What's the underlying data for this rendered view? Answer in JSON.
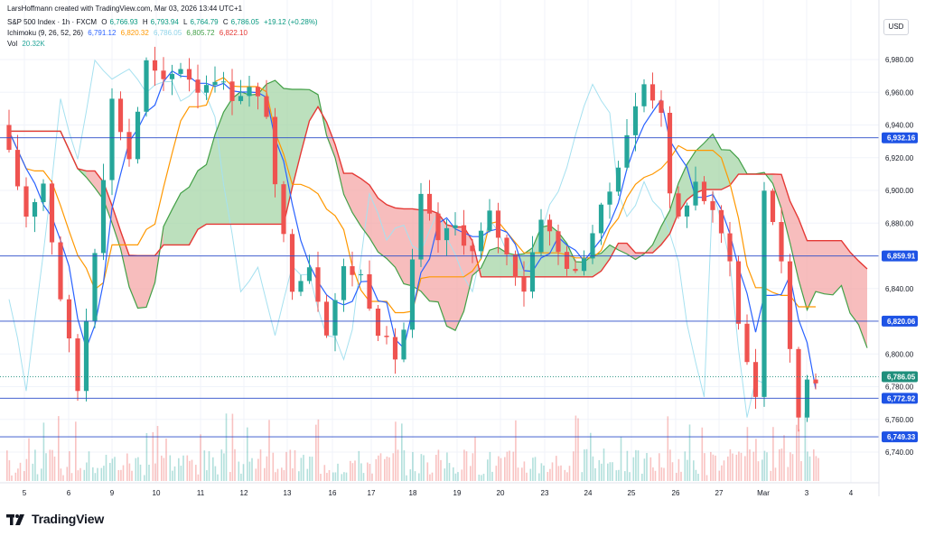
{
  "header": {
    "credit": "LarsHoffmann created with TradingView.com, Mar 03, 2026 13:44 UTC+1",
    "symbol": "S&P 500 Index · 1h · FXCM",
    "ohlc": [
      {
        "k": "O",
        "v": "6,766.93"
      },
      {
        "k": "H",
        "v": "6,793.94"
      },
      {
        "k": "L",
        "v": "6,764.79"
      },
      {
        "k": "C",
        "v": "6,786.05"
      }
    ],
    "change": "+19.12 (+0.28%)",
    "ichimoku": {
      "label": "Ichimoku (9, 26, 52, 26)",
      "values": [
        {
          "v": "6,791.12",
          "color": "#2962ff"
        },
        {
          "v": "6,820.32",
          "color": "#ff9800"
        },
        {
          "v": "6,786.05",
          "color": "#a6e1f0"
        },
        {
          "v": "6,805.72",
          "color": "#43a047"
        },
        {
          "v": "6,822.10",
          "color": "#e53935"
        }
      ]
    },
    "volume": {
      "label": "Vol",
      "value": "20.32K"
    }
  },
  "currency": "USD",
  "brand": "TradingView",
  "colors": {
    "up": "#26a69a",
    "down": "#ef5350",
    "tenkan": "#2962ff",
    "kijun": "#ff9800",
    "chikou": "#a6e1f0",
    "spanA": "#43a047",
    "spanB": "#e53935",
    "cloud_bull": "#a5d6a7",
    "cloud_bear": "#f4a7a7",
    "hline": "#2a4cc9",
    "price_tag": "#1e53e5",
    "last_price": "#1f8f7c"
  },
  "chart_data": {
    "type": "candlestick",
    "title": "S&P 500 Index · 1h · FXCM",
    "y_axis": {
      "ticks": [
        6740,
        6760,
        6780,
        6800,
        6820,
        6840,
        6860,
        6880,
        6900,
        6920,
        6940,
        6960,
        6980
      ],
      "range": [
        6730,
        6995
      ]
    },
    "x_axis": {
      "ticks": [
        "5",
        "6",
        "9",
        "10",
        "11",
        "12",
        "13",
        "16",
        "17",
        "18",
        "19",
        "20",
        "23",
        "24",
        "25",
        "26",
        "27",
        "Mar",
        "3",
        "4"
      ]
    },
    "horizontal_lines": [
      {
        "value": 6932.16,
        "label": "6,932.16",
        "style": "solid"
      },
      {
        "value": 6859.91,
        "label": "6,859.91",
        "style": "solid"
      },
      {
        "value": 6820.06,
        "label": "6,820.06",
        "style": "solid"
      },
      {
        "value": 6772.92,
        "label": "6,772.92",
        "style": "solid"
      },
      {
        "value": 6749.33,
        "label": "6,749.33",
        "style": "solid"
      },
      {
        "value": 6786.05,
        "label": "6,786.05",
        "style": "dotted",
        "kind": "last-price"
      }
    ],
    "price_path": [
      [
        0,
        6940
      ],
      [
        3,
        6885
      ],
      [
        5,
        6905
      ],
      [
        7,
        6835
      ],
      [
        9,
        6778
      ],
      [
        11,
        6865
      ],
      [
        13,
        6955
      ],
      [
        15,
        6920
      ],
      [
        17,
        6978
      ],
      [
        19,
        6965
      ],
      [
        21,
        6976
      ],
      [
        23,
        6962
      ],
      [
        25,
        6970
      ],
      [
        27,
        6958
      ],
      [
        29,
        6962
      ],
      [
        31,
        6948
      ],
      [
        32,
        6900
      ],
      [
        34,
        6842
      ],
      [
        36,
        6855
      ],
      [
        38,
        6815
      ],
      [
        40,
        6852
      ],
      [
        42,
        6848
      ],
      [
        44,
        6815
      ],
      [
        46,
        6798
      ],
      [
        47,
        6815
      ],
      [
        49,
        6895
      ],
      [
        51,
        6870
      ],
      [
        53,
        6878
      ],
      [
        55,
        6862
      ],
      [
        57,
        6885
      ],
      [
        59,
        6860
      ],
      [
        61,
        6840
      ],
      [
        63,
        6885
      ],
      [
        65,
        6862
      ],
      [
        67,
        6848
      ],
      [
        69,
        6875
      ],
      [
        71,
        6900
      ],
      [
        73,
        6935
      ],
      [
        75,
        6965
      ],
      [
        77,
        6950
      ],
      [
        78,
        6895
      ],
      [
        79,
        6882
      ],
      [
        81,
        6905
      ],
      [
        83,
        6885
      ],
      [
        85,
        6860
      ],
      [
        86,
        6818
      ],
      [
        87,
        6795
      ],
      [
        88,
        6775
      ],
      [
        89,
        6900
      ],
      [
        90,
        6882
      ],
      [
        91,
        6858
      ],
      [
        92,
        6800
      ],
      [
        93,
        6762
      ],
      [
        94,
        6786
      ]
    ],
    "volume_note": "volume histogram at bottom, colored by candle direction"
  }
}
